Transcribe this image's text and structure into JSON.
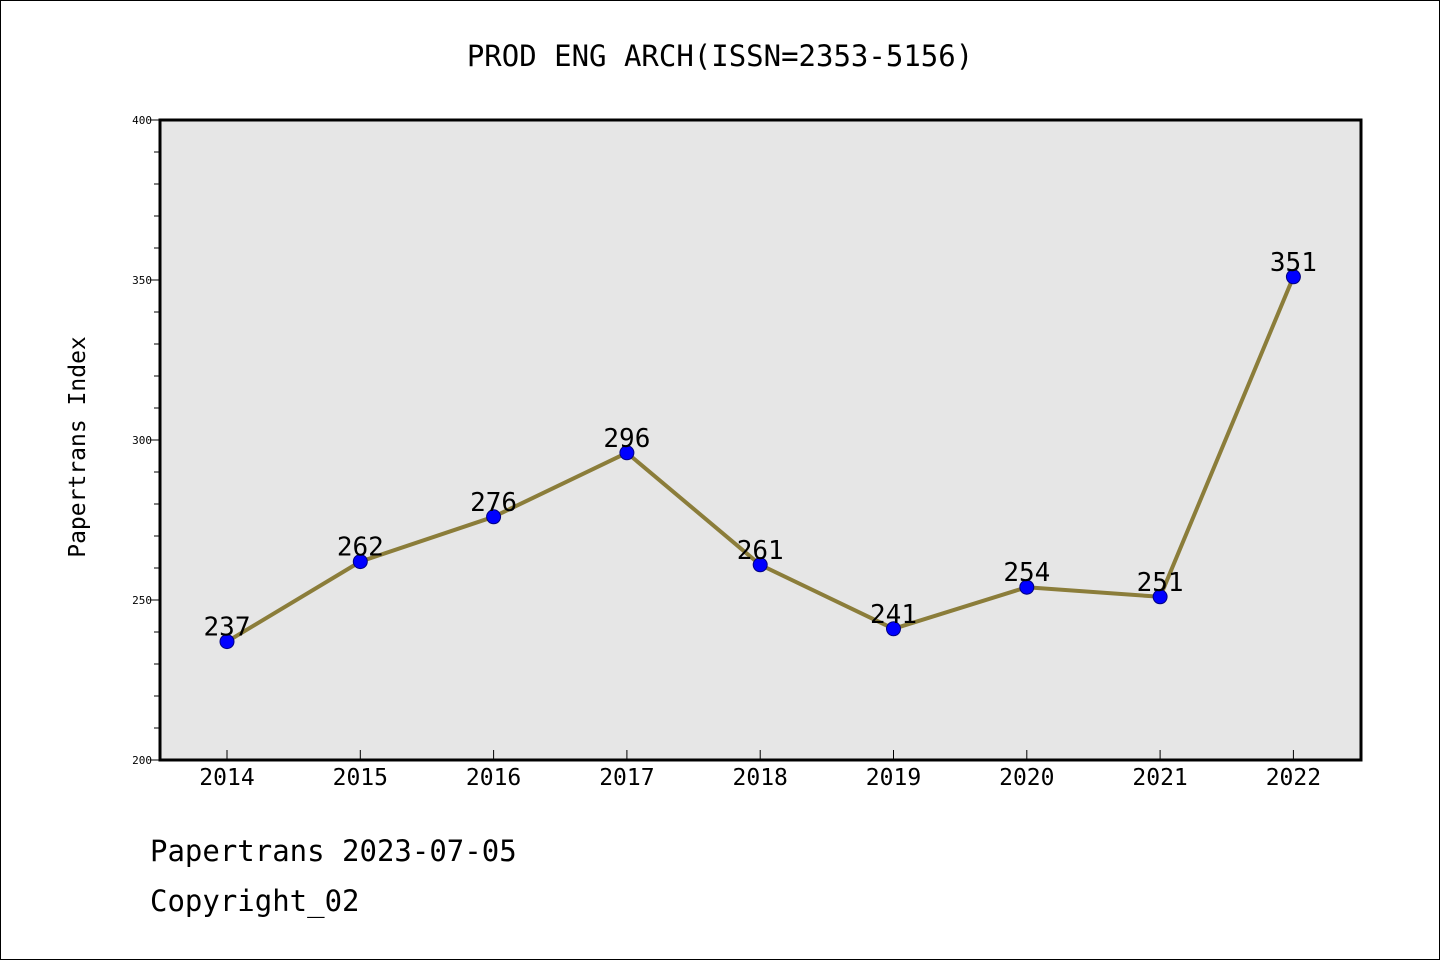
{
  "chart_data": {
    "type": "line",
    "title": "PROD ENG ARCH(ISSN=2353-5156)",
    "xlabel": "",
    "ylabel": "Papertrans Index",
    "categories": [
      "2014",
      "2015",
      "2016",
      "2017",
      "2018",
      "2019",
      "2020",
      "2021",
      "2022"
    ],
    "series": [
      {
        "values": [
          237,
          262,
          276,
          296,
          261,
          241,
          254,
          251,
          351
        ]
      }
    ],
    "data_labels": [
      "237",
      "262",
      "276",
      "296",
      "261",
      "241",
      "254",
      "251",
      "351"
    ],
    "ylim": [
      200,
      400
    ],
    "y_ticks": [
      "200",
      "250",
      "300",
      "350",
      "400"
    ],
    "y_tick_values": [
      200,
      250,
      300,
      350,
      400
    ],
    "grid": false,
    "legend": "none",
    "colors": {
      "plot_background": "#e6e6e6",
      "line": "#8b7d3a",
      "marker": "#0000ff",
      "marker_edge": "#000080"
    }
  },
  "footer": {
    "source": "Papertrans 2023-07-05",
    "copyright": "Copyright_02"
  }
}
